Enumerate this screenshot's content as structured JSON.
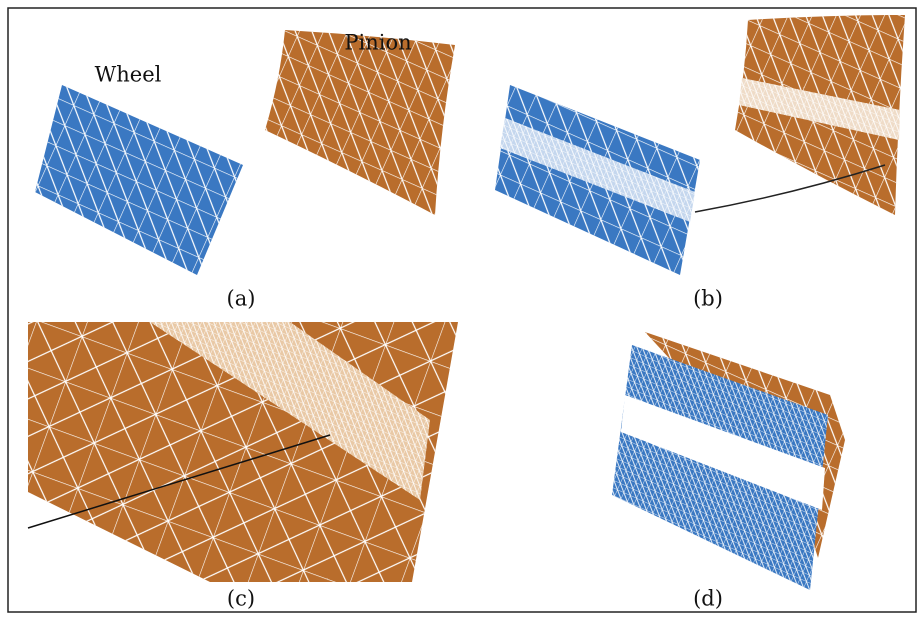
{
  "panels": [
    {
      "caption": "(a)",
      "labels": [
        "Wheel",
        "Pinion"
      ]
    },
    {
      "caption": "(b)"
    },
    {
      "caption": "(c)"
    },
    {
      "caption": "(d)"
    }
  ]
}
